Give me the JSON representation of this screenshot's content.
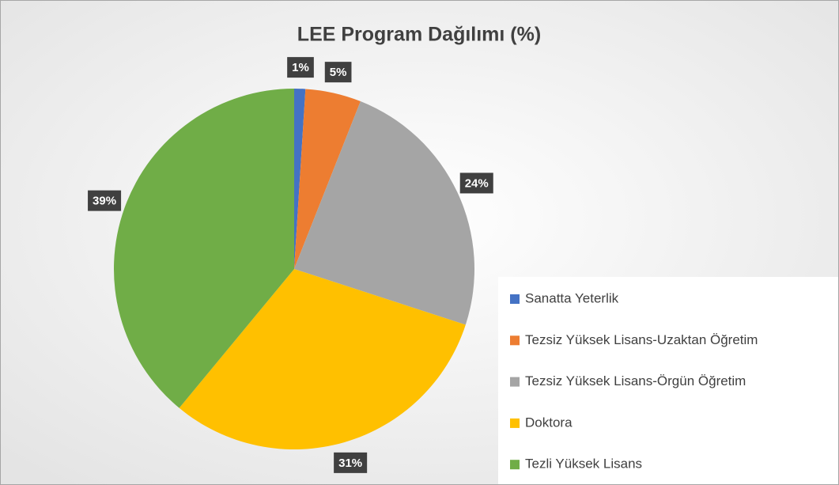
{
  "chart_data": {
    "type": "pie",
    "title": "LEE Program Dağılımı (%)",
    "categories": [
      "Sanatta Yeterlik",
      "Tezsiz Yüksek Lisans-Uzaktan Öğretim",
      "Tezsiz Yüksek Lisans-Örgün Öğretim",
      "Doktora",
      "Tezli Yüksek Lisans"
    ],
    "values": [
      1,
      5,
      24,
      31,
      39
    ],
    "value_labels": [
      "1%",
      "5%",
      "24%",
      "31%",
      "39%"
    ],
    "colors": [
      "#4472c4",
      "#ed7d31",
      "#a5a5a5",
      "#ffc000",
      "#70ad47"
    ],
    "legend": "right"
  }
}
